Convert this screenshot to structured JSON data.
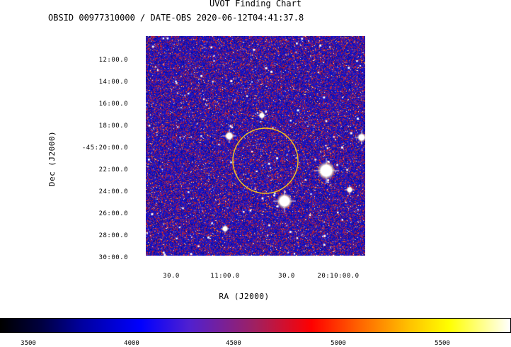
{
  "title": "UVOT Finding Chart",
  "subtitle": "OBSID 00977310000 / DATE-OBS 2020-06-12T04:41:37.8",
  "axes": {
    "ylabel": "Dec (J2000)",
    "xlabel": "RA (J2000)",
    "y_ticks": [
      "12:00.0",
      "14:00.0",
      "16:00.0",
      "18:00.0",
      "-45:20:00.0",
      "22:00.0",
      "24:00.0",
      "26:00.0",
      "28:00.0",
      "30:00.0"
    ],
    "x_ticks": [
      "30.0",
      "11:00.0",
      "30.0",
      "20:10:00.0"
    ]
  },
  "colorbar": {
    "ticks": [
      "3500",
      "4000",
      "4500",
      "5000",
      "5500"
    ]
  },
  "colors": {
    "background_noise": "#1a1ac8",
    "accent_red": "#d21e1e",
    "circle": "#f0c020"
  }
}
